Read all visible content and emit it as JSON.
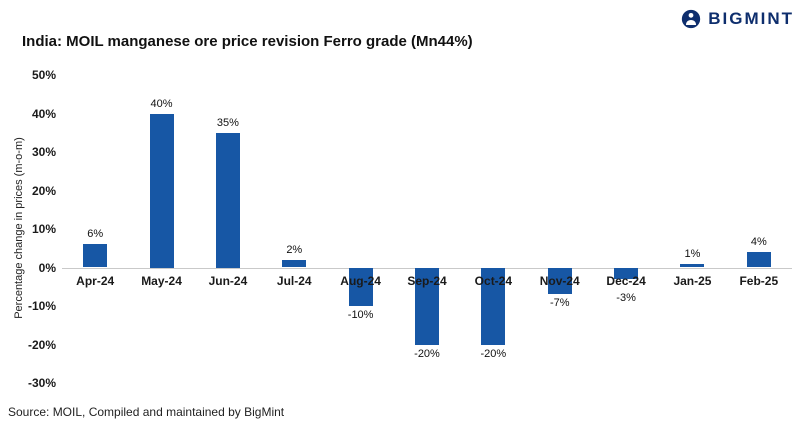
{
  "header": {
    "brand": "BIGMINT",
    "title": "India: MOIL manganese ore price revision Ferro grade (Mn44%)"
  },
  "chart_data": {
    "type": "bar",
    "title": "India: MOIL manganese ore price revision Ferro grade (Mn44%)",
    "categories": [
      "Apr-24",
      "May-24",
      "Jun-24",
      "Jul-24",
      "Aug-24",
      "Sep-24",
      "Oct-24",
      "Nov-24",
      "Dec-24",
      "Jan-25",
      "Feb-25"
    ],
    "values": [
      6,
      40,
      35,
      2,
      -10,
      -20,
      -20,
      -7,
      -3,
      1,
      4
    ],
    "value_labels": [
      "6%",
      "40%",
      "35%",
      "2%",
      "-10%",
      "-20%",
      "-20%",
      "-7%",
      "-3%",
      "1%",
      "4%"
    ],
    "xlabel": "",
    "ylabel": "Percentage change in prices (m-o-m)",
    "ylim": [
      -30,
      50
    ],
    "yticks": [
      "50%",
      "40%",
      "30%",
      "20%",
      "10%",
      "0%",
      "-10%",
      "-20%",
      "-30%"
    ],
    "grid": "zero-line-only",
    "legend": "none",
    "bar_color": "#1757a5"
  },
  "footer": {
    "source": "Source: MOIL, Compiled and maintained by BigMint"
  }
}
